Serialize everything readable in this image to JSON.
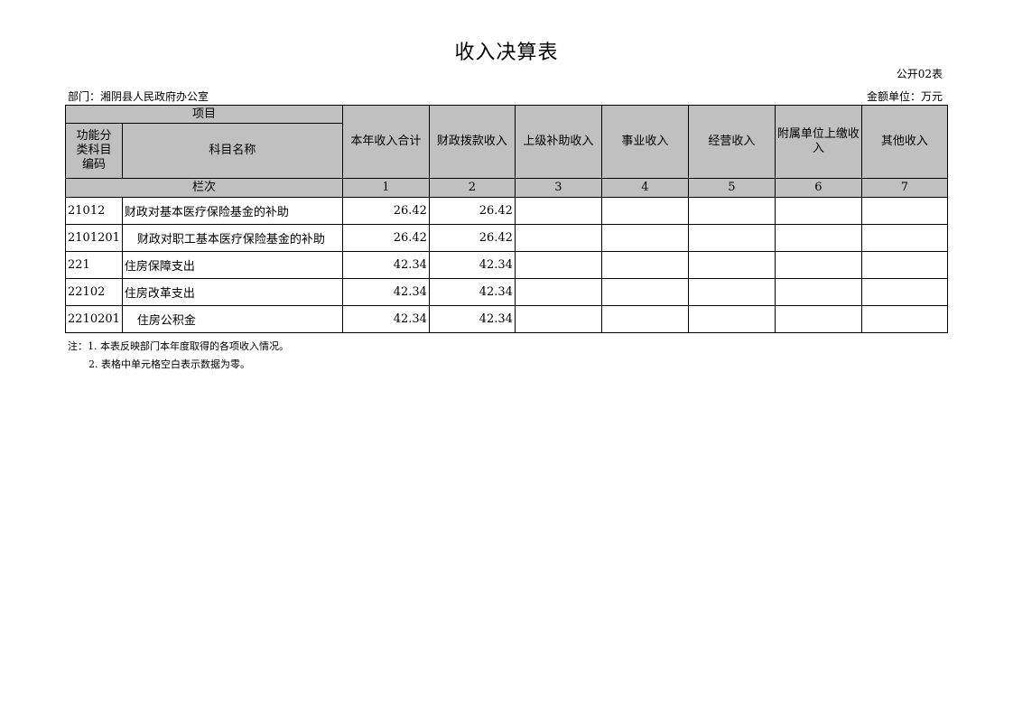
{
  "title": "收入决算表",
  "form_code": "公开02表",
  "department": "部门：湘阴县人民政府办公室",
  "unit": "金额单位：万元",
  "header": {
    "item": "项目",
    "code_col": "功能分类科目编码",
    "name_col": "科目名称",
    "row_index": "栏次",
    "columns": [
      "本年收入合计",
      "财政拨款收入",
      "上级补助收入",
      "事业收入",
      "经营收入",
      "附属单位上缴收入",
      "其他收入"
    ],
    "column_numbers": [
      "1",
      "2",
      "3",
      "4",
      "5",
      "6",
      "7"
    ]
  },
  "rows": [
    {
      "code": "21012",
      "name": "财政对基本医疗保险基金的补助",
      "indent": false,
      "values": [
        "26.42",
        "26.42",
        "",
        "",
        "",
        "",
        ""
      ]
    },
    {
      "code": "2101201",
      "name": "财政对职工基本医疗保险基金的补助",
      "indent": true,
      "values": [
        "26.42",
        "26.42",
        "",
        "",
        "",
        "",
        ""
      ]
    },
    {
      "code": "221",
      "name": "住房保障支出",
      "indent": false,
      "values": [
        "42.34",
        "42.34",
        "",
        "",
        "",
        "",
        ""
      ]
    },
    {
      "code": "22102",
      "name": "住房改革支出",
      "indent": false,
      "values": [
        "42.34",
        "42.34",
        "",
        "",
        "",
        "",
        ""
      ]
    },
    {
      "code": "2210201",
      "name": "住房公积金",
      "indent": true,
      "values": [
        "42.34",
        "42.34",
        "",
        "",
        "",
        "",
        ""
      ]
    }
  ],
  "notes": [
    "注：1. 本表反映部门本年度取得的各项收入情况。",
    "2. 表格中单元格空白表示数据为零。"
  ]
}
